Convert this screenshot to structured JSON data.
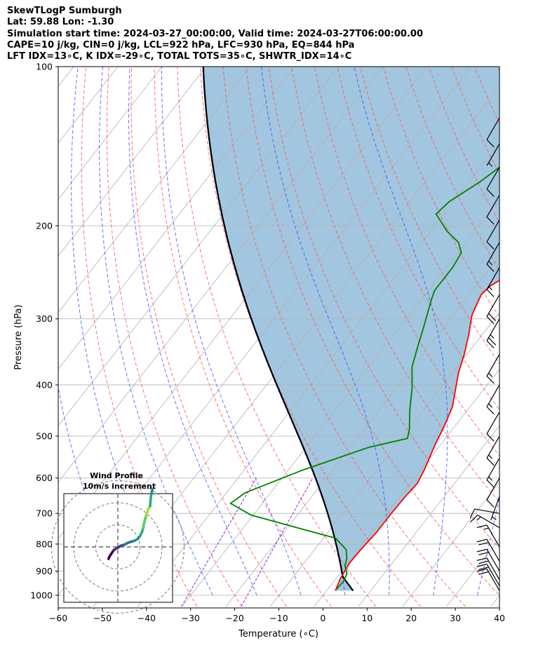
{
  "title_lines": [
    "SkewTLogP Sumburgh",
    "Lat: 59.88   Lon: -1.30",
    "Simulation start time: 2024-03-27_00:00:00, Valid time: 2024-03-27T06:00:00.00",
    "CAPE=10 j/kg, CIN=0 j/kg, LCL=922 hPa, LFC=930 hPa, EQ=844 hPa",
    "LFT IDX=13∘C, K IDX=-29∘C, TOTAL TOTS=35∘C, SHWTR_IDX=14∘C"
  ],
  "colors": {
    "temperature": "#ff0000",
    "dewpoint": "#008000",
    "parcel": "#000000",
    "cape_fill": "#a2c6df",
    "isotherm": "#b0b0b0",
    "dry_adiabat": "#ff5050",
    "moist_adiabat": "#3344ff",
    "mixing_ratio": "#8a2be2",
    "grid": "#b0b0b0"
  },
  "chart_data": {
    "type": "skewt",
    "xlabel": "Temperature (∘C)",
    "ylabel": "Pressure (hPa)",
    "xlim": [
      -60,
      40
    ],
    "ylim": [
      1050,
      100
    ],
    "x_ticks": [
      -60,
      -50,
      -40,
      -30,
      -20,
      -10,
      0,
      10,
      20,
      30,
      40
    ],
    "y_ticks": [
      1000,
      900,
      800,
      700,
      600,
      500,
      400,
      300,
      200,
      100
    ],
    "log_y": true,
    "temperature": [
      [
        2,
        980
      ],
      [
        1,
        930
      ],
      [
        0.3,
        870
      ],
      [
        0.5,
        820
      ],
      [
        1,
        760
      ],
      [
        1,
        700
      ],
      [
        1.2,
        650
      ],
      [
        1.6,
        615
      ],
      [
        0.8,
        580
      ],
      [
        -1.2,
        520
      ],
      [
        -2.4,
        480
      ],
      [
        -4.0,
        440
      ],
      [
        -6.2,
        410
      ],
      [
        -8.6,
        380
      ],
      [
        -10.6,
        350
      ],
      [
        -13.2,
        320
      ],
      [
        -15.8,
        295
      ],
      [
        -17.3,
        270
      ],
      [
        -16.8,
        260
      ],
      [
        -14.1,
        245
      ],
      [
        -10.8,
        228
      ],
      [
        -7.7,
        215
      ],
      [
        -5.5,
        207
      ],
      [
        -2.4,
        200
      ],
      [
        0.6,
        192
      ],
      [
        2.8,
        184
      ],
      [
        4.8,
        175
      ],
      [
        6.8,
        165
      ],
      [
        8.2,
        155
      ],
      [
        9.4,
        145
      ],
      [
        10.4,
        135
      ],
      [
        11.0,
        125
      ],
      [
        12.3,
        115
      ],
      [
        13.1,
        108
      ],
      [
        13.2,
        100
      ]
    ],
    "dewpoint": [
      [
        2,
        975
      ],
      [
        2.2,
        940
      ],
      [
        1.6,
        910
      ],
      [
        -0.2,
        880
      ],
      [
        -1.2,
        850
      ],
      [
        -2.8,
        820
      ],
      [
        -7.2,
        780
      ],
      [
        -17.8,
        745
      ],
      [
        -30.5,
        705
      ],
      [
        -37.2,
        670
      ],
      [
        -35.8,
        640
      ],
      [
        -26.8,
        580
      ],
      [
        -15.8,
        525
      ],
      [
        -8.6,
        505
      ],
      [
        -9.8,
        485
      ],
      [
        -13.2,
        445
      ],
      [
        -16.5,
        405
      ],
      [
        -20.2,
        370
      ],
      [
        -22.4,
        340
      ],
      [
        -24.7,
        310
      ],
      [
        -27.8,
        275
      ],
      [
        -28.6,
        265
      ],
      [
        -28.6,
        255
      ],
      [
        -28.6,
        240
      ],
      [
        -29.2,
        225
      ],
      [
        -31.7,
        215
      ],
      [
        -36.2,
        205
      ],
      [
        -41.8,
        190
      ],
      [
        -41.0,
        180
      ],
      [
        -37.5,
        165
      ],
      [
        -34.4,
        148
      ],
      [
        -30.3,
        128
      ],
      [
        -26.2,
        113
      ],
      [
        -23.4,
        104
      ],
      [
        -22.4,
        100
      ]
    ],
    "parcel_start": [
      6,
      980
    ],
    "lcl_hpa": 922,
    "cape_j_kg": 10,
    "cin_j_kg": 0,
    "lfc_hpa": 930,
    "eq_hpa": 844,
    "wind_barbs": [
      {
        "p": 980,
        "speed_kt": 20,
        "dir_deg": 330
      },
      {
        "p": 960,
        "speed_kt": 20,
        "dir_deg": 330
      },
      {
        "p": 935,
        "speed_kt": 20,
        "dir_deg": 330
      },
      {
        "p": 900,
        "speed_kt": 20,
        "dir_deg": 330
      },
      {
        "p": 862,
        "speed_kt": 20,
        "dir_deg": 330
      },
      {
        "p": 810,
        "speed_kt": 15,
        "dir_deg": 330
      },
      {
        "p": 745,
        "speed_kt": 15,
        "dir_deg": 300
      },
      {
        "p": 700,
        "speed_kt": 10,
        "dir_deg": 280
      },
      {
        "p": 650,
        "speed_kt": 5,
        "dir_deg": 200
      },
      {
        "p": 600,
        "speed_kt": 10,
        "dir_deg": 210
      },
      {
        "p": 550,
        "speed_kt": 15,
        "dir_deg": 210
      },
      {
        "p": 500,
        "speed_kt": 15,
        "dir_deg": 210
      },
      {
        "p": 450,
        "speed_kt": 10,
        "dir_deg": 210
      },
      {
        "p": 400,
        "speed_kt": 15,
        "dir_deg": 210
      },
      {
        "p": 350,
        "speed_kt": 15,
        "dir_deg": 210
      },
      {
        "p": 300,
        "speed_kt": 25,
        "dir_deg": 210
      },
      {
        "p": 270,
        "speed_kt": 20,
        "dir_deg": 210
      },
      {
        "p": 240,
        "speed_kt": 15,
        "dir_deg": 210
      },
      {
        "p": 215,
        "speed_kt": 15,
        "dir_deg": 210
      },
      {
        "p": 195,
        "speed_kt": 10,
        "dir_deg": 210
      },
      {
        "p": 175,
        "speed_kt": 10,
        "dir_deg": 210
      },
      {
        "p": 155,
        "speed_kt": 10,
        "dir_deg": 210
      },
      {
        "p": 140,
        "speed_kt": 5,
        "dir_deg": 210
      },
      {
        "p": 125,
        "speed_kt": 10,
        "dir_deg": 210
      }
    ],
    "hodograph": {
      "title": "Wind Profile",
      "subtitle": "10m/s increment",
      "ring_step_ms": 10,
      "rings": 3,
      "points_uv": [
        [
          -4.2,
          -5.4
        ],
        [
          -3.9,
          -4.6
        ],
        [
          -3.2,
          -3.4
        ],
        [
          -1.8,
          -1.4
        ],
        [
          0.2,
          -0.2
        ],
        [
          1.2,
          0.5
        ],
        [
          2.2,
          0.8
        ],
        [
          3.2,
          1.1
        ],
        [
          4.4,
          1.8
        ],
        [
          5.8,
          2.3
        ],
        [
          7.5,
          2.8
        ],
        [
          9.0,
          3.6
        ],
        [
          10.2,
          5.2
        ],
        [
          11.0,
          7.0
        ],
        [
          11.5,
          8.6
        ],
        [
          11.8,
          10.5
        ],
        [
          12.3,
          12.5
        ],
        [
          13.0,
          14.6
        ],
        [
          13.5,
          16.5
        ],
        [
          14.6,
          18.5
        ],
        [
          14.8,
          21.4
        ],
        [
          15.2,
          24.1
        ],
        [
          15.7,
          26.3
        ]
      ]
    }
  }
}
